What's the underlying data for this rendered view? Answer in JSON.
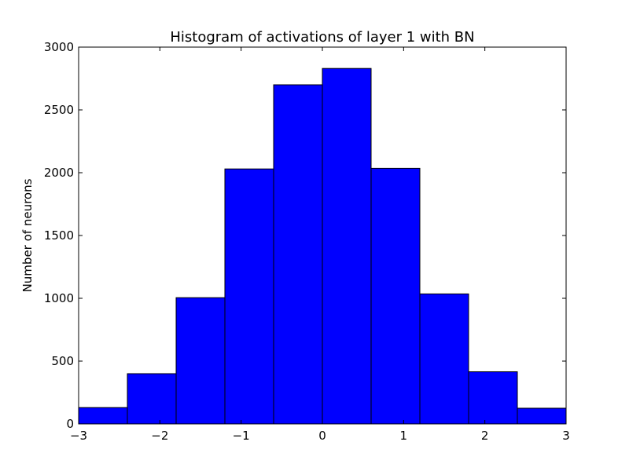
{
  "chart_data": {
    "type": "bar",
    "title": "Histogram of activations of layer 1  with BN",
    "xlabel": "",
    "ylabel": "Number of neurons",
    "xlim": [
      -3,
      3
    ],
    "ylim": [
      0,
      3000
    ],
    "bin_edges": [
      -3,
      -2.4,
      -1.8,
      -1.2,
      -0.6,
      0,
      0.6,
      1.2,
      1.8,
      2.4,
      3
    ],
    "values": [
      130,
      400,
      1005,
      2030,
      2700,
      2830,
      2035,
      1035,
      415,
      125
    ],
    "x_ticks": [
      -3,
      -2,
      -1,
      0,
      1,
      2,
      3
    ],
    "x_tick_labels": [
      "−3",
      "−2",
      "−1",
      "0",
      "1",
      "2",
      "3"
    ],
    "y_ticks": [
      0,
      500,
      1000,
      1500,
      2000,
      2500,
      3000
    ],
    "y_tick_labels": [
      "0",
      "500",
      "1000",
      "1500",
      "2000",
      "2500",
      "3000"
    ],
    "bar_color": "#0000ff",
    "edge_color": "#000000",
    "grid": false
  }
}
